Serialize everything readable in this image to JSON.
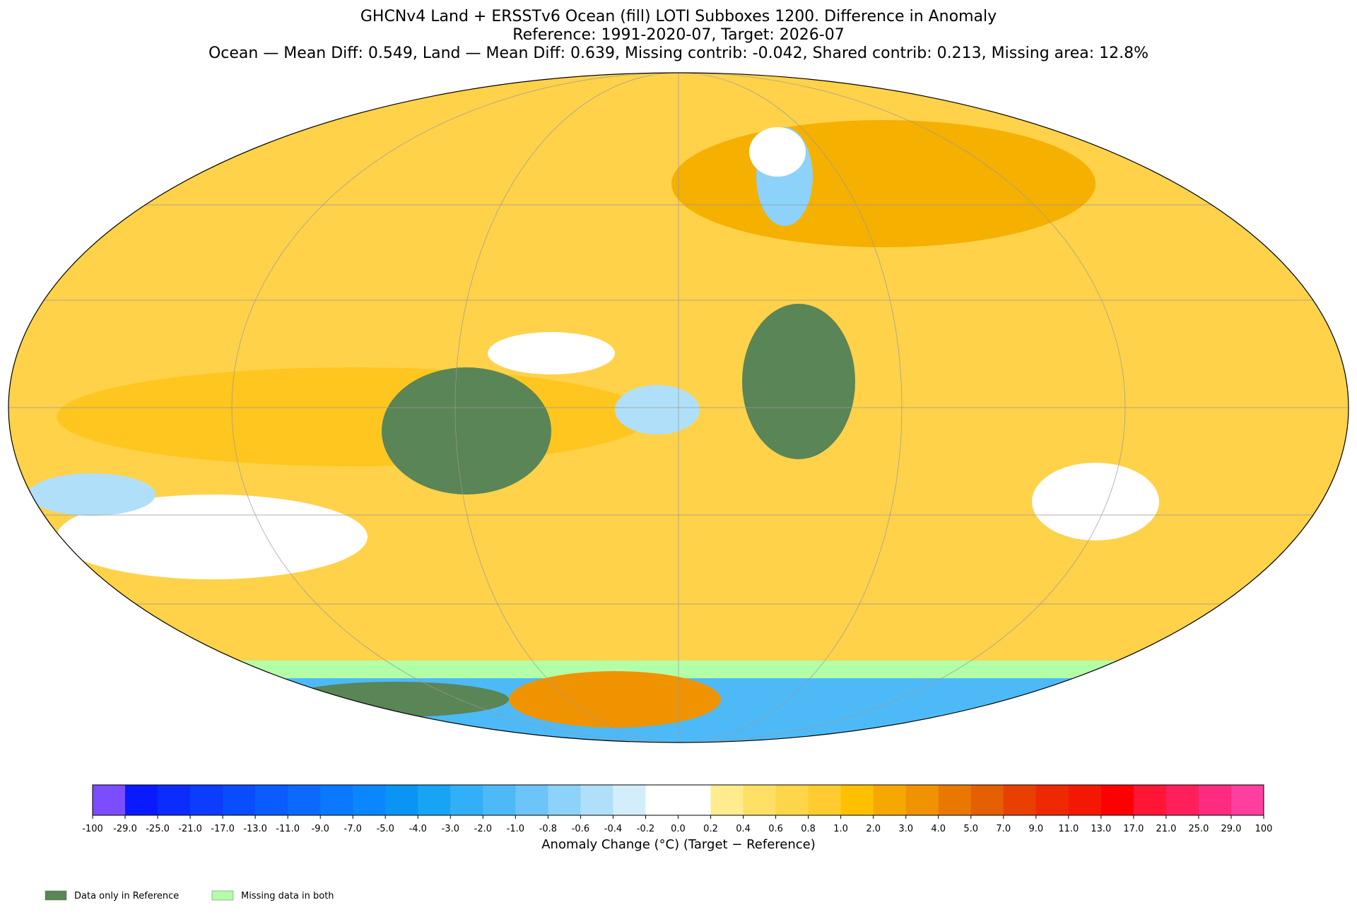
{
  "title": [
    "GHCNv4 Land + ERSSTv6 Ocean (fill) LOTI Subboxes 1200. Difference in Anomaly",
    "Reference: 1991-2020-07, Target: 2026-07",
    "Ocean — Mean Diff: 0.549, Land — Mean Diff: 0.639, Missing contrib: -0.042, Shared contrib: 0.213, Missing area: 12.8%"
  ],
  "colorbar": {
    "label": "Anomaly Change (°C) (Target − Reference)",
    "ticks": [
      "-100",
      "-29.0",
      "-25.0",
      "-21.0",
      "-17.0",
      "-13.0",
      "-11.0",
      "-9.0",
      "-7.0",
      "-5.0",
      "-4.0",
      "-3.0",
      "-2.0",
      "-1.0",
      "-0.8",
      "-0.6",
      "-0.4",
      "-0.2",
      "0.0",
      "0.2",
      "0.4",
      "0.6",
      "0.8",
      "1.0",
      "2.0",
      "3.0",
      "4.0",
      "5.0",
      "7.0",
      "9.0",
      "11.0",
      "13.0",
      "17.0",
      "21.0",
      "25.0",
      "29.0",
      "100"
    ],
    "colors": [
      "#7b4dff",
      "#0a1aff",
      "#0a2cff",
      "#0b3cff",
      "#0a4dff",
      "#0a5cff",
      "#0b69ff",
      "#0a78ff",
      "#0a86ff",
      "#0a95f5",
      "#17a4f5",
      "#32b0f7",
      "#4dbaf7",
      "#6cc4f8",
      "#8dd2fa",
      "#b0e0f9",
      "#d3eefb",
      "#ffffff",
      "#ffffff",
      "#ffec8f",
      "#ffe066",
      "#ffd64a",
      "#ffcb2e",
      "#ffc000",
      "#f5a800",
      "#ef9300",
      "#e97800",
      "#e35f00",
      "#e84000",
      "#ee2800",
      "#f51800",
      "#ff0000",
      "#ff1535",
      "#ff1f5a",
      "#ff2b80",
      "#ff3fa0"
    ]
  },
  "legend": [
    {
      "label": "Data only in Reference",
      "color": "#5a8556"
    },
    {
      "label": "Missing data in both",
      "color": "#b3ffa8"
    }
  ]
}
